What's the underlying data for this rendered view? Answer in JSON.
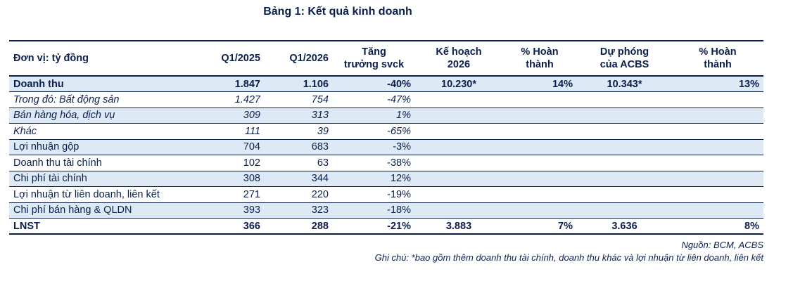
{
  "title": "Bảng 1: Kết quả kinh doanh",
  "table": {
    "headers": {
      "unit": "Đơn vị: tỷ đồng",
      "q1_2025": "Q1/2025",
      "q1_2026": "Q1/2026",
      "growth_line1": "Tăng",
      "growth_line2": "trưởng svck",
      "plan_line1": "Kế hoạch",
      "plan_line2": "2026",
      "pct1_line1": "% Hoàn",
      "pct1_line2": "thành",
      "forecast_line1": "Dự phóng",
      "forecast_line2": "của ACBS",
      "pct2_line1": "% Hoàn",
      "pct2_line2": "thành"
    },
    "rows": [
      {
        "label": "Doanh thu",
        "q1_2025": "1.847",
        "q1_2026": "1.106",
        "growth": "-40%",
        "plan": "10.230*",
        "pct_plan": "14%",
        "forecast": "10.343*",
        "pct_forecast": "13%"
      },
      {
        "label": "Trong đó: Bất động sản",
        "q1_2025": "1.427",
        "q1_2026": "754",
        "growth": "-47%",
        "plan": "",
        "pct_plan": "",
        "forecast": "",
        "pct_forecast": ""
      },
      {
        "label": "Bán hàng hóa, dịch vụ",
        "q1_2025": "309",
        "q1_2026": "313",
        "growth": "1%",
        "plan": "",
        "pct_plan": "",
        "forecast": "",
        "pct_forecast": ""
      },
      {
        "label": "Khác",
        "q1_2025": "111",
        "q1_2026": "39",
        "growth": "-65%",
        "plan": "",
        "pct_plan": "",
        "forecast": "",
        "pct_forecast": ""
      },
      {
        "label": "Lợi nhuận gộp",
        "q1_2025": "704",
        "q1_2026": "683",
        "growth": "-3%",
        "plan": "",
        "pct_plan": "",
        "forecast": "",
        "pct_forecast": ""
      },
      {
        "label": "Doanh thu tài chính",
        "q1_2025": "102",
        "q1_2026": "63",
        "growth": "-38%",
        "plan": "",
        "pct_plan": "",
        "forecast": "",
        "pct_forecast": ""
      },
      {
        "label": "Chi phí tài chính",
        "q1_2025": "308",
        "q1_2026": "344",
        "growth": "12%",
        "plan": "",
        "pct_plan": "",
        "forecast": "",
        "pct_forecast": ""
      },
      {
        "label": "Lợi nhuận từ liên doanh, liên kết",
        "q1_2025": "271",
        "q1_2026": "220",
        "growth": "-19%",
        "plan": "",
        "pct_plan": "",
        "forecast": "",
        "pct_forecast": ""
      },
      {
        "label": "Chi phí bán hàng & QLDN",
        "q1_2025": "393",
        "q1_2026": "323",
        "growth": "-18%",
        "plan": "",
        "pct_plan": "",
        "forecast": "",
        "pct_forecast": ""
      },
      {
        "label": "LNST",
        "q1_2025": "366",
        "q1_2026": "288",
        "growth": "-21%",
        "plan": "3.883",
        "pct_plan": "7%",
        "forecast": "3.636",
        "pct_forecast": "8%"
      }
    ]
  },
  "source": "Nguồn: BCM, ACBS",
  "note": "Ghi chú: *bao gồm thêm doanh thu tài chính, doanh thu khác và lợi nhuận từ liên doanh, liên kết",
  "colors": {
    "text": "#0b1f4d",
    "shade": "#dde9f5",
    "rule": "#0b1f4d"
  }
}
